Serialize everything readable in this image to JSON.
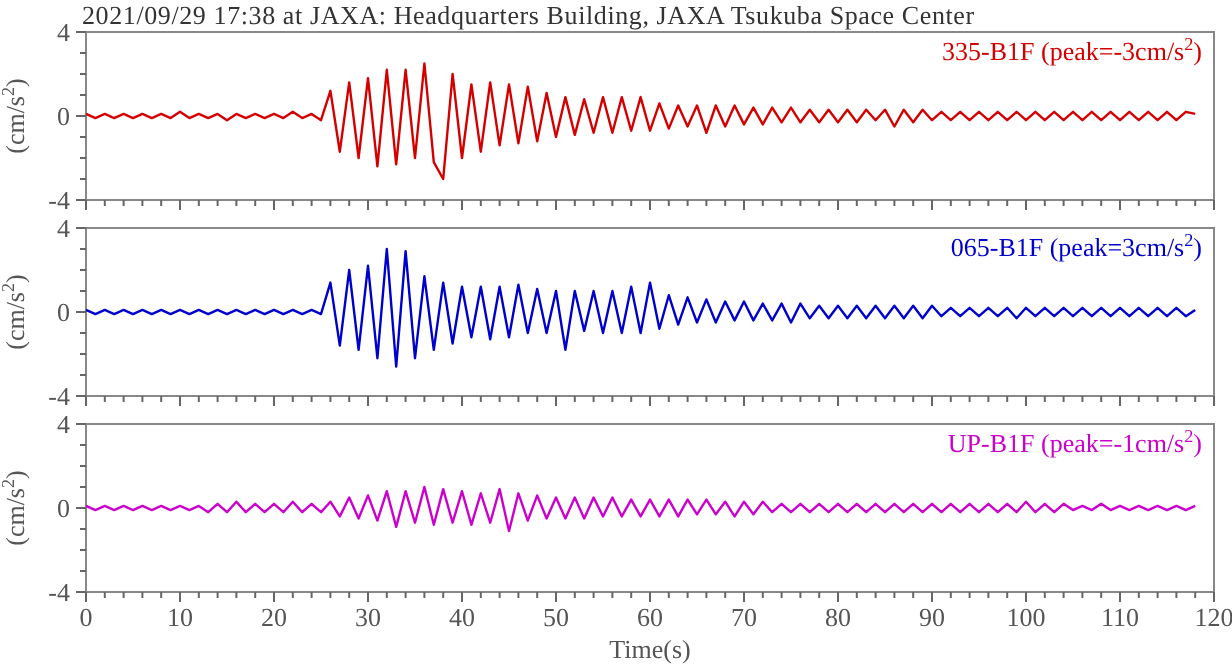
{
  "chart_data": [
    {
      "type": "line",
      "title": "2021/09/29 17:38 at JAXA: Headquarters Building, JAXA Tsukuba Space Center",
      "ylabel": "(cm/s$^{2}$)",
      "tick_labels": "y",
      "xlim": [
        0,
        120
      ],
      "ylim": [
        -4,
        4
      ],
      "xticks": [
        0,
        {
          "value": 2,
          "label": null
        },
        {
          "value": 4,
          "label": null
        },
        {
          "value": 6,
          "label": null
        },
        {
          "value": 8,
          "label": null
        },
        10,
        {
          "value": 12,
          "label": null
        },
        {
          "value": 14,
          "label": null
        },
        {
          "value": 16,
          "label": null
        },
        {
          "value": 18,
          "label": null
        },
        20,
        {
          "value": 22,
          "label": null
        },
        {
          "value": 24,
          "label": null
        },
        {
          "value": 26,
          "label": null
        },
        {
          "value": 28,
          "label": null
        },
        30,
        {
          "value": 32,
          "label": null
        },
        {
          "value": 34,
          "label": null
        },
        {
          "value": 36,
          "label": null
        },
        {
          "value": 38,
          "label": null
        },
        40,
        {
          "value": 42,
          "label": null
        },
        {
          "value": 44,
          "label": null
        },
        {
          "value": 46,
          "label": null
        },
        {
          "value": 48,
          "label": null
        },
        50,
        {
          "value": 52,
          "label": null
        },
        {
          "value": 54,
          "label": null
        },
        {
          "value": 56,
          "label": null
        },
        {
          "value": 58,
          "label": null
        },
        60,
        {
          "value": 62,
          "label": null
        },
        {
          "value": 64,
          "label": null
        },
        {
          "value": 66,
          "label": null
        },
        {
          "value": 68,
          "label": null
        },
        70,
        {
          "value": 72,
          "label": null
        },
        {
          "value": 74,
          "label": null
        },
        {
          "value": 76,
          "label": null
        },
        {
          "value": 78,
          "label": null
        },
        80,
        {
          "value": 82,
          "label": null
        },
        {
          "value": 84,
          "label": null
        },
        {
          "value": 86,
          "label": null
        },
        {
          "value": 88,
          "label": null
        },
        90,
        {
          "value": 92,
          "label": null
        },
        {
          "value": 94,
          "label": null
        },
        {
          "value": 96,
          "label": null
        },
        {
          "value": 98,
          "label": null
        },
        100,
        {
          "value": 102,
          "label": null
        },
        {
          "value": 104,
          "label": null
        },
        {
          "value": 106,
          "label": null
        },
        {
          "value": 108,
          "label": null
        },
        110,
        {
          "value": 112,
          "label": null
        },
        {
          "value": 114,
          "label": null
        },
        {
          "value": 116,
          "label": null
        },
        {
          "value": 118,
          "label": null
        },
        120
      ],
      "yticks": [
        -4,
        {
          "value": -3,
          "label": null
        },
        {
          "value": -2,
          "label": null
        },
        {
          "value": -1,
          "label": null
        },
        0,
        {
          "value": 1,
          "label": null
        },
        {
          "value": 2,
          "label": null
        },
        {
          "value": 3,
          "label": null
        },
        4
      ],
      "x": [
        0,
        1,
        2,
        3,
        4,
        5,
        6,
        7,
        8,
        9,
        10,
        11,
        12,
        13,
        14,
        15,
        16,
        17,
        18,
        19,
        20,
        21,
        22,
        23,
        24,
        25,
        26,
        27,
        28,
        29,
        30,
        31,
        32,
        33,
        34,
        35,
        36,
        37,
        38,
        39,
        40,
        41,
        42,
        43,
        44,
        45,
        46,
        47,
        48,
        49,
        50,
        51,
        52,
        53,
        54,
        55,
        56,
        57,
        58,
        59,
        60,
        61,
        62,
        63,
        64,
        65,
        66,
        67,
        68,
        69,
        70,
        71,
        72,
        73,
        74,
        75,
        76,
        77,
        78,
        79,
        80,
        81,
        82,
        83,
        84,
        85,
        86,
        87,
        88,
        89,
        90,
        91,
        92,
        93,
        94,
        95,
        96,
        97,
        98,
        99,
        100,
        101,
        102,
        103,
        104,
        105,
        106,
        107,
        108,
        109,
        110,
        111,
        112,
        113,
        114,
        115,
        116,
        117,
        118
      ],
      "series": [
        {
          "name": "335-B1F (peak=-3cm/s$^{2}$)",
          "color": "#d40000",
          "values": [
            0.1,
            -0.1,
            0.1,
            -0.1,
            0.1,
            -0.1,
            0.1,
            -0.1,
            0.1,
            -0.1,
            0.2,
            -0.1,
            0.1,
            -0.1,
            0.1,
            -0.2,
            0.1,
            -0.1,
            0.1,
            -0.1,
            0.1,
            -0.1,
            0.2,
            -0.1,
            0.1,
            -0.2,
            1.2,
            -1.7,
            1.6,
            -2.0,
            1.8,
            -2.4,
            2.2,
            -2.3,
            2.2,
            -2.0,
            2.5,
            -2.2,
            -3.0,
            2.0,
            -2.0,
            1.5,
            -1.7,
            1.6,
            -1.4,
            1.5,
            -1.3,
            1.4,
            -1.2,
            1.1,
            -1.0,
            0.9,
            -0.9,
            0.8,
            -0.8,
            0.9,
            -0.8,
            0.9,
            -0.7,
            0.9,
            -0.7,
            0.6,
            -0.6,
            0.5,
            -0.5,
            0.5,
            -0.8,
            0.5,
            -0.5,
            0.5,
            -0.4,
            0.4,
            -0.4,
            0.4,
            -0.3,
            0.4,
            -0.3,
            0.3,
            -0.3,
            0.3,
            -0.3,
            0.3,
            -0.3,
            0.3,
            -0.2,
            0.3,
            -0.5,
            0.3,
            -0.3,
            0.3,
            -0.2,
            0.2,
            -0.2,
            0.2,
            -0.2,
            0.2,
            -0.2,
            0.2,
            -0.2,
            0.2,
            -0.2,
            0.2,
            -0.2,
            0.2,
            -0.2,
            0.2,
            -0.2,
            0.2,
            -0.2,
            0.2,
            -0.2,
            0.2,
            -0.2,
            0.2,
            -0.2,
            0.2,
            -0.2,
            0.2,
            0.1
          ]
        }
      ]
    },
    {
      "type": "line",
      "ylabel": "(cm/s$^{2}$)",
      "tick_labels": "y",
      "xlim": [
        0,
        120
      ],
      "ylim": [
        -4,
        4
      ],
      "xticks": [
        0,
        {
          "value": 2,
          "label": null
        },
        {
          "value": 4,
          "label": null
        },
        {
          "value": 6,
          "label": null
        },
        {
          "value": 8,
          "label": null
        },
        10,
        {
          "value": 12,
          "label": null
        },
        {
          "value": 14,
          "label": null
        },
        {
          "value": 16,
          "label": null
        },
        {
          "value": 18,
          "label": null
        },
        20,
        {
          "value": 22,
          "label": null
        },
        {
          "value": 24,
          "label": null
        },
        {
          "value": 26,
          "label": null
        },
        {
          "value": 28,
          "label": null
        },
        30,
        {
          "value": 32,
          "label": null
        },
        {
          "value": 34,
          "label": null
        },
        {
          "value": 36,
          "label": null
        },
        {
          "value": 38,
          "label": null
        },
        40,
        {
          "value": 42,
          "label": null
        },
        {
          "value": 44,
          "label": null
        },
        {
          "value": 46,
          "label": null
        },
        {
          "value": 48,
          "label": null
        },
        50,
        {
          "value": 52,
          "label": null
        },
        {
          "value": 54,
          "label": null
        },
        {
          "value": 56,
          "label": null
        },
        {
          "value": 58,
          "label": null
        },
        60,
        {
          "value": 62,
          "label": null
        },
        {
          "value": 64,
          "label": null
        },
        {
          "value": 66,
          "label": null
        },
        {
          "value": 68,
          "label": null
        },
        70,
        {
          "value": 72,
          "label": null
        },
        {
          "value": 74,
          "label": null
        },
        {
          "value": 76,
          "label": null
        },
        {
          "value": 78,
          "label": null
        },
        80,
        {
          "value": 82,
          "label": null
        },
        {
          "value": 84,
          "label": null
        },
        {
          "value": 86,
          "label": null
        },
        {
          "value": 88,
          "label": null
        },
        90,
        {
          "value": 92,
          "label": null
        },
        {
          "value": 94,
          "label": null
        },
        {
          "value": 96,
          "label": null
        },
        {
          "value": 98,
          "label": null
        },
        100,
        {
          "value": 102,
          "label": null
        },
        {
          "value": 104,
          "label": null
        },
        {
          "value": 106,
          "label": null
        },
        {
          "value": 108,
          "label": null
        },
        110,
        {
          "value": 112,
          "label": null
        },
        {
          "value": 114,
          "label": null
        },
        {
          "value": 116,
          "label": null
        },
        {
          "value": 118,
          "label": null
        },
        120
      ],
      "yticks": [
        -4,
        {
          "value": -3,
          "label": null
        },
        {
          "value": -2,
          "label": null
        },
        {
          "value": -1,
          "label": null
        },
        0,
        {
          "value": 1,
          "label": null
        },
        {
          "value": 2,
          "label": null
        },
        {
          "value": 3,
          "label": null
        },
        4
      ],
      "x": [
        0,
        1,
        2,
        3,
        4,
        5,
        6,
        7,
        8,
        9,
        10,
        11,
        12,
        13,
        14,
        15,
        16,
        17,
        18,
        19,
        20,
        21,
        22,
        23,
        24,
        25,
        26,
        27,
        28,
        29,
        30,
        31,
        32,
        33,
        34,
        35,
        36,
        37,
        38,
        39,
        40,
        41,
        42,
        43,
        44,
        45,
        46,
        47,
        48,
        49,
        50,
        51,
        52,
        53,
        54,
        55,
        56,
        57,
        58,
        59,
        60,
        61,
        62,
        63,
        64,
        65,
        66,
        67,
        68,
        69,
        70,
        71,
        72,
        73,
        74,
        75,
        76,
        77,
        78,
        79,
        80,
        81,
        82,
        83,
        84,
        85,
        86,
        87,
        88,
        89,
        90,
        91,
        92,
        93,
        94,
        95,
        96,
        97,
        98,
        99,
        100,
        101,
        102,
        103,
        104,
        105,
        106,
        107,
        108,
        109,
        110,
        111,
        112,
        113,
        114,
        115,
        116,
        117,
        118
      ],
      "series": [
        {
          "name": "065-B1F (peak=3cm/s$^{2}$)",
          "color": "#0000cc",
          "values": [
            0.1,
            -0.1,
            0.1,
            -0.1,
            0.1,
            -0.1,
            0.1,
            -0.1,
            0.1,
            -0.1,
            0.1,
            -0.1,
            0.1,
            -0.1,
            0.1,
            -0.1,
            0.1,
            -0.1,
            0.1,
            -0.1,
            0.1,
            -0.1,
            0.1,
            -0.1,
            0.1,
            -0.1,
            1.4,
            -1.6,
            2.0,
            -1.8,
            2.2,
            -2.2,
            3.0,
            -2.6,
            2.9,
            -2.2,
            1.7,
            -1.8,
            1.4,
            -1.5,
            1.2,
            -1.2,
            1.2,
            -1.3,
            1.2,
            -1.2,
            1.3,
            -1.0,
            1.1,
            -1.0,
            1.0,
            -1.8,
            1.0,
            -0.9,
            1.0,
            -1.0,
            1.0,
            -1.0,
            1.2,
            -1.0,
            1.4,
            -0.8,
            0.8,
            -0.6,
            0.7,
            -0.5,
            0.6,
            -0.5,
            0.5,
            -0.4,
            0.5,
            -0.4,
            0.4,
            -0.4,
            0.4,
            -0.5,
            0.4,
            -0.3,
            0.3,
            -0.3,
            0.3,
            -0.3,
            0.3,
            -0.3,
            0.3,
            -0.3,
            0.3,
            -0.3,
            0.3,
            -0.3,
            0.3,
            -0.2,
            0.2,
            -0.2,
            0.2,
            -0.2,
            0.2,
            -0.2,
            0.2,
            -0.3,
            0.2,
            -0.2,
            0.2,
            -0.2,
            0.2,
            -0.2,
            0.2,
            -0.2,
            0.2,
            -0.2,
            0.2,
            -0.2,
            0.2,
            -0.2,
            0.2,
            -0.2,
            0.2,
            -0.2,
            0.1
          ]
        }
      ]
    },
    {
      "type": "line",
      "ylabel": "(cm/s$^{2}$)",
      "xlabel": "Time(s)",
      "xlim": [
        0,
        120
      ],
      "ylim": [
        -4,
        4
      ],
      "xticks": [
        0,
        {
          "value": 2,
          "label": null
        },
        {
          "value": 4,
          "label": null
        },
        {
          "value": 6,
          "label": null
        },
        {
          "value": 8,
          "label": null
        },
        10,
        {
          "value": 12,
          "label": null
        },
        {
          "value": 14,
          "label": null
        },
        {
          "value": 16,
          "label": null
        },
        {
          "value": 18,
          "label": null
        },
        20,
        {
          "value": 22,
          "label": null
        },
        {
          "value": 24,
          "label": null
        },
        {
          "value": 26,
          "label": null
        },
        {
          "value": 28,
          "label": null
        },
        30,
        {
          "value": 32,
          "label": null
        },
        {
          "value": 34,
          "label": null
        },
        {
          "value": 36,
          "label": null
        },
        {
          "value": 38,
          "label": null
        },
        40,
        {
          "value": 42,
          "label": null
        },
        {
          "value": 44,
          "label": null
        },
        {
          "value": 46,
          "label": null
        },
        {
          "value": 48,
          "label": null
        },
        50,
        {
          "value": 52,
          "label": null
        },
        {
          "value": 54,
          "label": null
        },
        {
          "value": 56,
          "label": null
        },
        {
          "value": 58,
          "label": null
        },
        60,
        {
          "value": 62,
          "label": null
        },
        {
          "value": 64,
          "label": null
        },
        {
          "value": 66,
          "label": null
        },
        {
          "value": 68,
          "label": null
        },
        70,
        {
          "value": 72,
          "label": null
        },
        {
          "value": 74,
          "label": null
        },
        {
          "value": 76,
          "label": null
        },
        {
          "value": 78,
          "label": null
        },
        80,
        {
          "value": 82,
          "label": null
        },
        {
          "value": 84,
          "label": null
        },
        {
          "value": 86,
          "label": null
        },
        {
          "value": 88,
          "label": null
        },
        90,
        {
          "value": 92,
          "label": null
        },
        {
          "value": 94,
          "label": null
        },
        {
          "value": 96,
          "label": null
        },
        {
          "value": 98,
          "label": null
        },
        100,
        {
          "value": 102,
          "label": null
        },
        {
          "value": 104,
          "label": null
        },
        {
          "value": 106,
          "label": null
        },
        {
          "value": 108,
          "label": null
        },
        110,
        {
          "value": 112,
          "label": null
        },
        {
          "value": 114,
          "label": null
        },
        {
          "value": 116,
          "label": null
        },
        {
          "value": 118,
          "label": null
        },
        120
      ],
      "yticks": [
        -4,
        {
          "value": -3,
          "label": null
        },
        {
          "value": -2,
          "label": null
        },
        {
          "value": -1,
          "label": null
        },
        0,
        {
          "value": 1,
          "label": null
        },
        {
          "value": 2,
          "label": null
        },
        {
          "value": 3,
          "label": null
        },
        4
      ],
      "x": [
        0,
        1,
        2,
        3,
        4,
        5,
        6,
        7,
        8,
        9,
        10,
        11,
        12,
        13,
        14,
        15,
        16,
        17,
        18,
        19,
        20,
        21,
        22,
        23,
        24,
        25,
        26,
        27,
        28,
        29,
        30,
        31,
        32,
        33,
        34,
        35,
        36,
        37,
        38,
        39,
        40,
        41,
        42,
        43,
        44,
        45,
        46,
        47,
        48,
        49,
        50,
        51,
        52,
        53,
        54,
        55,
        56,
        57,
        58,
        59,
        60,
        61,
        62,
        63,
        64,
        65,
        66,
        67,
        68,
        69,
        70,
        71,
        72,
        73,
        74,
        75,
        76,
        77,
        78,
        79,
        80,
        81,
        82,
        83,
        84,
        85,
        86,
        87,
        88,
        89,
        90,
        91,
        92,
        93,
        94,
        95,
        96,
        97,
        98,
        99,
        100,
        101,
        102,
        103,
        104,
        105,
        106,
        107,
        108,
        109,
        110,
        111,
        112,
        113,
        114,
        115,
        116,
        117,
        118
      ],
      "series": [
        {
          "name": "UP-B1F (peak=-1cm/s$^{2}$)",
          "color": "#cc00cc",
          "values": [
            0.1,
            -0.1,
            0.1,
            -0.1,
            0.1,
            -0.1,
            0.1,
            -0.1,
            0.1,
            -0.1,
            0.1,
            -0.1,
            0.1,
            -0.2,
            0.2,
            -0.2,
            0.3,
            -0.2,
            0.2,
            -0.2,
            0.2,
            -0.2,
            0.3,
            -0.2,
            0.2,
            -0.2,
            0.3,
            -0.4,
            0.5,
            -0.5,
            0.6,
            -0.6,
            0.8,
            -0.9,
            0.8,
            -0.7,
            1.0,
            -0.8,
            0.9,
            -0.7,
            0.8,
            -0.8,
            0.7,
            -0.7,
            0.9,
            -1.1,
            0.7,
            -0.6,
            0.6,
            -0.5,
            0.5,
            -0.5,
            0.5,
            -0.5,
            0.5,
            -0.4,
            0.5,
            -0.4,
            0.4,
            -0.4,
            0.4,
            -0.4,
            0.4,
            -0.4,
            0.4,
            -0.3,
            0.4,
            -0.3,
            0.3,
            -0.4,
            0.3,
            -0.3,
            0.3,
            -0.2,
            0.2,
            -0.2,
            0.2,
            -0.2,
            0.2,
            -0.2,
            0.2,
            -0.2,
            0.2,
            -0.2,
            0.2,
            -0.2,
            0.2,
            -0.2,
            0.2,
            -0.2,
            0.2,
            -0.2,
            0.2,
            -0.2,
            0.2,
            -0.2,
            0.2,
            -0.2,
            0.2,
            -0.2,
            0.3,
            -0.2,
            0.2,
            -0.2,
            0.2,
            -0.1,
            0.1,
            -0.1,
            0.2,
            -0.1,
            0.1,
            -0.1,
            0.1,
            -0.1,
            0.1,
            -0.1,
            0.1,
            -0.1,
            0.1
          ]
        }
      ]
    }
  ]
}
